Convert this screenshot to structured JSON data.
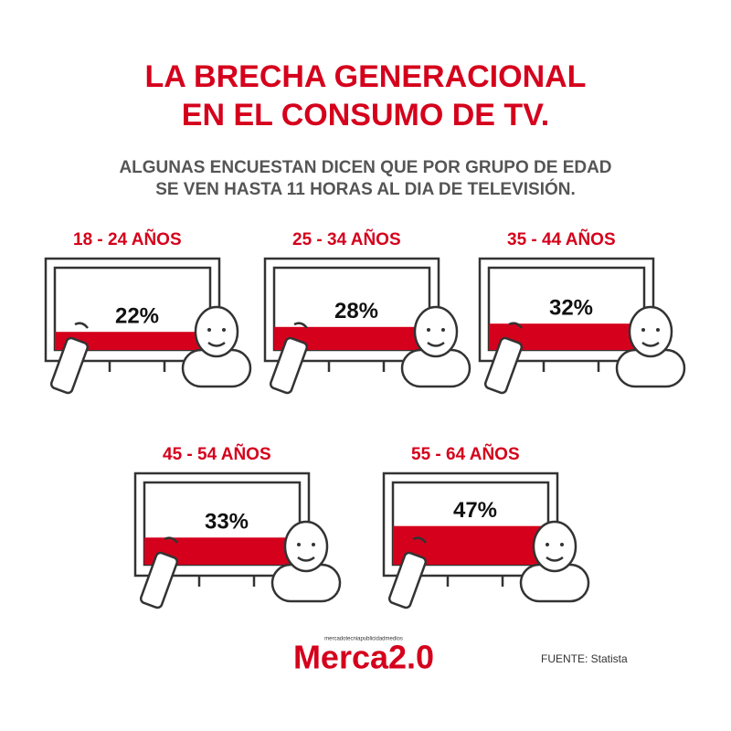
{
  "chart_data": {
    "type": "tv-fill",
    "title_lines": [
      "LA BRECHA GENERACIONAL",
      "EN EL CONSUMO DE TV."
    ],
    "subtitle_lines": [
      "ALGUNAS ENCUESTAN DICEN QUE POR GRUPO DE EDAD",
      "SE VEN HASTA 11 HORAS AL DIA DE TELEVISIÓN."
    ],
    "categories": [
      "18 - 24 AÑOS",
      "25 - 34 AÑOS",
      "35 - 44 AÑOS",
      "45 - 54 AÑOS",
      "55 - 64 AÑOS"
    ],
    "values": [
      22,
      28,
      32,
      33,
      47
    ],
    "value_labels": [
      "22%",
      "28%",
      "32%",
      "33%",
      "47%"
    ],
    "color": "#d5001c",
    "brand": "Merca2.0",
    "brand_tagline": "mercadotecniapublicidadmedios",
    "source": "FUENTE: Statista"
  }
}
